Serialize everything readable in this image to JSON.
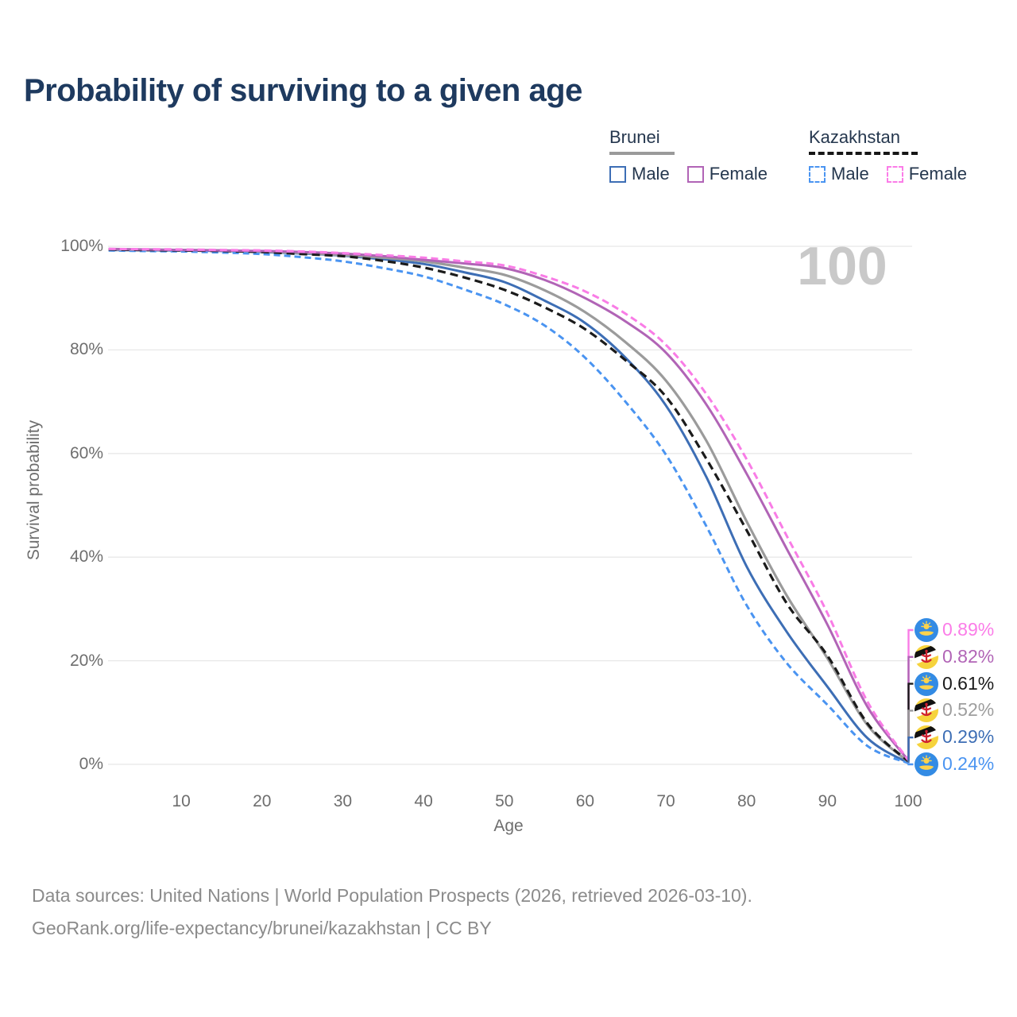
{
  "title": "Probability of surviving to a given age",
  "watermark": "100",
  "legend": {
    "groups": [
      {
        "name": "Brunei",
        "line_style": "solid",
        "underline_color": "#9a9a9a",
        "items": [
          {
            "label": "Male",
            "color": "#3d6eb5",
            "dashed": false
          },
          {
            "label": "Female",
            "color": "#b164b6",
            "dashed": false
          }
        ]
      },
      {
        "name": "Kazakhstan",
        "line_style": "dashed",
        "underline_color": "#161616",
        "items": [
          {
            "label": "Male",
            "color": "#4a94f1",
            "dashed": true
          },
          {
            "label": "Female",
            "color": "#fb7ce8",
            "dashed": true
          }
        ]
      }
    ]
  },
  "axes": {
    "y": {
      "title": "Survival probability",
      "ticks": [
        "100%",
        "80%",
        "60%",
        "40%",
        "20%",
        "0%"
      ],
      "tick_values": [
        100,
        80,
        60,
        40,
        20,
        0
      ]
    },
    "x": {
      "title": "Age",
      "ticks": [
        "10",
        "20",
        "30",
        "40",
        "50",
        "60",
        "70",
        "80",
        "90",
        "100"
      ],
      "tick_values": [
        10,
        20,
        30,
        40,
        50,
        60,
        70,
        80,
        90,
        100
      ]
    }
  },
  "chart_data": {
    "type": "line",
    "title": "Probability of surviving to a given age",
    "xlabel": "Age",
    "ylabel": "Survival probability",
    "y_unit": "%",
    "xlim": [
      1,
      100
    ],
    "ylim": [
      0,
      100
    ],
    "grid": "horizontal",
    "x": [
      1,
      5,
      10,
      15,
      20,
      25,
      30,
      35,
      40,
      45,
      50,
      55,
      60,
      65,
      70,
      75,
      80,
      85,
      90,
      95,
      100
    ],
    "series": [
      {
        "id": "bn_male",
        "name": "Brunei Male",
        "country": "Brunei",
        "sex": "Male",
        "color": "#3d6eb5",
        "dash": "",
        "width": 3,
        "values": [
          99.3,
          99.25,
          99.2,
          99.1,
          98.9,
          98.6,
          98.2,
          97.5,
          96.6,
          95.0,
          93.1,
          89.5,
          85.2,
          78.5,
          69.3,
          55.5,
          38.2,
          25.5,
          15.0,
          5.0,
          0.29
        ],
        "end_label": "0.29%"
      },
      {
        "id": "kz_male",
        "name": "Kazakhstan Male",
        "country": "Kazakhstan",
        "sex": "Male",
        "color": "#4a94f1",
        "dash": "8 5",
        "width": 3,
        "values": [
          99.2,
          99.1,
          99.0,
          98.8,
          98.5,
          97.9,
          97.1,
          95.8,
          94.2,
          91.7,
          88.8,
          84.7,
          78.5,
          70.0,
          59.8,
          46.0,
          30.7,
          19.5,
          11.5,
          3.5,
          0.24
        ],
        "end_label": "0.24%"
      },
      {
        "id": "bn_total",
        "name": "Brunei",
        "country": "Brunei",
        "sex": "Both",
        "color": "#9b9b9b",
        "dash": "",
        "width": 3.2,
        "values": [
          99.4,
          99.35,
          99.3,
          99.2,
          99.0,
          98.7,
          98.3,
          97.8,
          97.1,
          95.9,
          94.5,
          91.5,
          87.3,
          81.5,
          74.1,
          62.5,
          46.9,
          32.5,
          20.5,
          7.5,
          0.52
        ],
        "end_label": "0.52%"
      },
      {
        "id": "kz_total",
        "name": "Kazakhstan",
        "country": "Kazakhstan",
        "sex": "Both",
        "color": "#1b1b1b",
        "dash": "10 6",
        "width": 3.2,
        "values": [
          99.4,
          99.3,
          99.2,
          99.1,
          98.9,
          98.5,
          98.1,
          97.2,
          95.9,
          94.0,
          91.6,
          88.2,
          84.0,
          78.0,
          71.0,
          59.0,
          45.2,
          31.0,
          21.0,
          7.8,
          0.61
        ],
        "end_label": "0.61%"
      },
      {
        "id": "bn_female",
        "name": "Brunei Female",
        "country": "Brunei",
        "sex": "Female",
        "color": "#b164b6",
        "dash": "",
        "width": 3,
        "values": [
          99.5,
          99.4,
          99.3,
          99.2,
          99.1,
          98.9,
          98.6,
          98.1,
          97.4,
          96.7,
          95.8,
          93.5,
          90.0,
          85.5,
          79.5,
          69.5,
          56.1,
          41.5,
          27.0,
          11.0,
          0.82
        ],
        "end_label": "0.82%"
      },
      {
        "id": "kz_female",
        "name": "Kazakhstan Female",
        "country": "Kazakhstan",
        "sex": "Female",
        "color": "#f97ce6",
        "dash": "9 5",
        "width": 3,
        "values": [
          99.5,
          99.45,
          99.4,
          99.3,
          99.2,
          99.0,
          98.7,
          98.3,
          97.8,
          97.1,
          96.3,
          94.2,
          91.3,
          87.0,
          81.0,
          71.5,
          58.9,
          44.0,
          29.2,
          12.0,
          0.89
        ],
        "end_label": "0.89%"
      }
    ]
  },
  "end_labels": [
    {
      "value": "0.89%",
      "series_id": "kz_female",
      "flag": "kazakhstan",
      "text_color": "#fb7ce8"
    },
    {
      "value": "0.82%",
      "series_id": "bn_female",
      "flag": "brunei",
      "text_color": "#b164b6"
    },
    {
      "value": "0.61%",
      "series_id": "kz_total",
      "flag": "kazakhstan",
      "text_color": "#1a1a1a"
    },
    {
      "value": "0.52%",
      "series_id": "bn_total",
      "flag": "brunei",
      "text_color": "#9e9e9e"
    },
    {
      "value": "0.29%",
      "series_id": "bn_male",
      "flag": "brunei",
      "text_color": "#3d6eb5"
    },
    {
      "value": "0.24%",
      "series_id": "kz_male",
      "flag": "kazakhstan",
      "text_color": "#4a94f1"
    }
  ],
  "footer": {
    "line1": "Data sources: United Nations | World Population Prospects (2026, retrieved 2026-03-10).",
    "line2": "GeoRank.org/life-expectancy/brunei/kazakhstan | CC BY"
  }
}
